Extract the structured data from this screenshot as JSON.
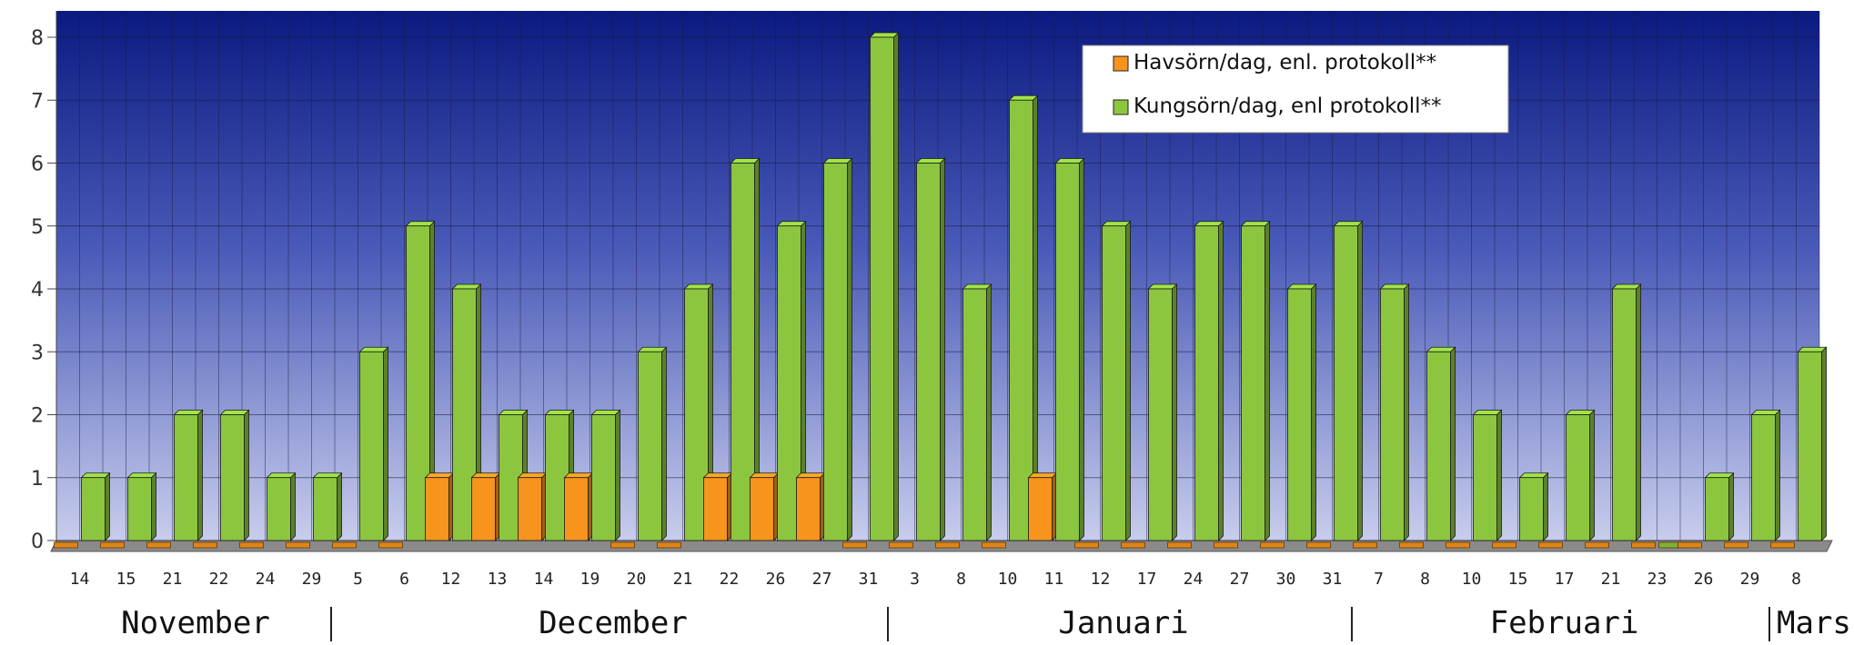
{
  "chart_data": {
    "type": "bar",
    "ylim": [
      0,
      8
    ],
    "yticks": [
      0,
      1,
      2,
      3,
      4,
      5,
      6,
      7,
      8
    ],
    "grid": true,
    "legend_position": "top-right",
    "categories": [
      "14",
      "15",
      "21",
      "22",
      "24",
      "29",
      "5",
      "6",
      "12",
      "13",
      "14",
      "19",
      "20",
      "21",
      "22",
      "26",
      "27",
      "31",
      "3",
      "8",
      "10",
      "11",
      "12",
      "17",
      "24",
      "27",
      "30",
      "31",
      "7",
      "8",
      "10",
      "15",
      "17",
      "21",
      "23",
      "26",
      "29",
      "8"
    ],
    "months": [
      {
        "label": "November",
        "start": 0,
        "end": 5
      },
      {
        "label": "December",
        "start": 6,
        "end": 17
      },
      {
        "label": "Januari",
        "start": 18,
        "end": 27
      },
      {
        "label": "Februari",
        "start": 28,
        "end": 36
      },
      {
        "label": "Mars",
        "start": 37,
        "end": 37
      }
    ],
    "series": [
      {
        "name": "Havsörn/dag, enl. protokoll**",
        "color": "#f7941d",
        "values": [
          0,
          0,
          0,
          0,
          0,
          0,
          0,
          0,
          1,
          1,
          1,
          1,
          0,
          0,
          1,
          1,
          1,
          0,
          0,
          0,
          0,
          1,
          0,
          0,
          0,
          0,
          0,
          0,
          0,
          0,
          0,
          0,
          0,
          0,
          0,
          0,
          0,
          0
        ]
      },
      {
        "name": "Kungsörn/dag, enl protokoll**",
        "color": "#8cc63f",
        "values": [
          1,
          1,
          2,
          2,
          1,
          1,
          3,
          5,
          4,
          2,
          2,
          2,
          3,
          4,
          6,
          5,
          6,
          8,
          6,
          4,
          7,
          6,
          5,
          4,
          5,
          5,
          4,
          5,
          4,
          3,
          2,
          1,
          2,
          4,
          0,
          1,
          2,
          3
        ]
      }
    ]
  }
}
